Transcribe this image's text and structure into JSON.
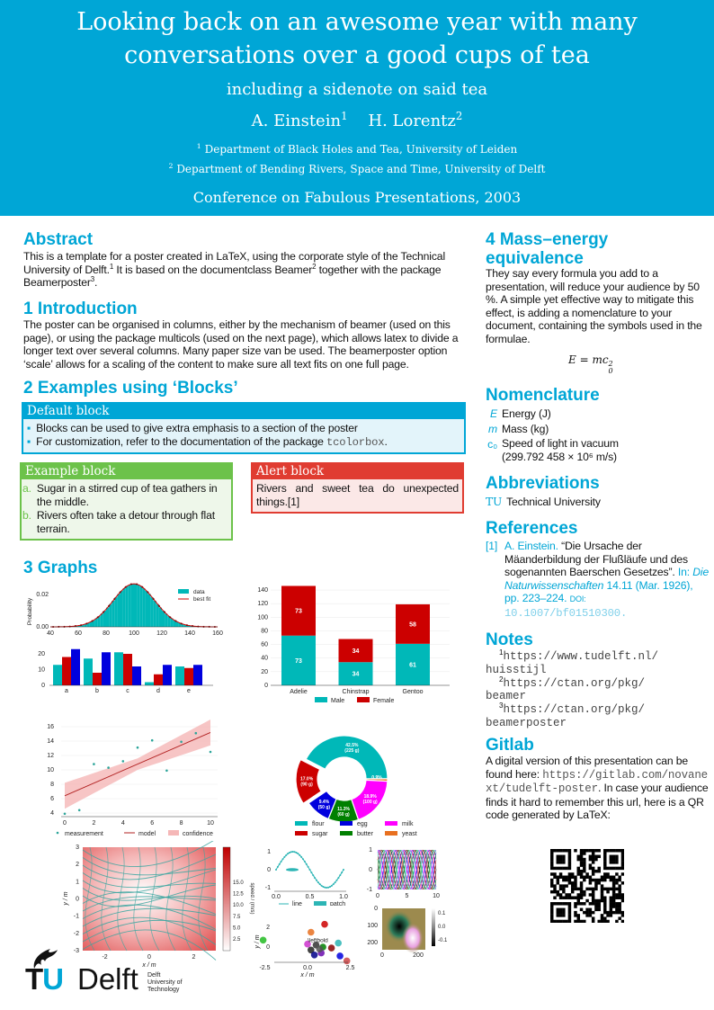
{
  "header": {
    "title_line1": "Looking back on an awesome year with many",
    "title_line2": "conversations over a good cups of tea",
    "subtitle": "including a sidenote on said tea",
    "author1": "A. Einstein",
    "author1_sup": "1",
    "author2": "H. Lorentz",
    "author2_sup": "2",
    "affil1_sup": "1",
    "affil1": "Department of Black Holes and Tea, University of Leiden",
    "affil2_sup": "2",
    "affil2": "Department of Bending Rivers, Space and Time, University of Delft",
    "conference": "Conference on Fabulous Presentations, 2003",
    "color": "#00A6D6"
  },
  "abstract": {
    "heading": "Abstract",
    "text1": "This is a template for a poster created in LaTeX, using the corporate style of the Technical University of Delft.",
    "sup1": "1",
    "text2": " It is based on the documentclass Beamer",
    "sup2": "2",
    "text3": " together with the package Beamerposter",
    "sup3": "3",
    "text4": "."
  },
  "intro": {
    "heading": "1 Introduction",
    "text": "The poster can be organised in columns, either by the mechanism of beamer (used on this page), or using the package multicols (used on the next page), which allows latex to divide a longer text over several columns.  Many paper size van be used.  The beamerposter option ‘scale’ allows for a scaling of the content to make sure all text fits on one full page."
  },
  "examples": {
    "heading": "2 Examples using ‘Blocks’",
    "default_block": {
      "title": "Default block",
      "items": [
        "Blocks can be used to give extra emphasis to a section of the poster",
        "For customization, refer to the documentation of the package "
      ],
      "package": "tcolorbox",
      "end": ".",
      "color": "#00A6D6"
    },
    "example_block": {
      "title": "Example block",
      "items": [
        {
          "marker": "a.",
          "text": "Sugar in a stirred cup of tea gathers in the middle."
        },
        {
          "marker": "b.",
          "text": "Rivers often take a detour through flat terrain."
        }
      ],
      "color": "#6CC24A"
    },
    "alert_block": {
      "title": "Alert block",
      "text": "Rivers and sweet tea do unexpected things.[1]",
      "color": "#E03C31"
    }
  },
  "graphs": {
    "heading": "3 Graphs"
  },
  "chart_data": [
    {
      "type": "histogram",
      "ylabel": "Probability",
      "xticks": [
        40,
        60,
        80,
        100,
        120,
        140,
        160
      ],
      "yticks": [
        "0.00",
        "0.02"
      ],
      "xlim": [
        40,
        160
      ],
      "ylim": [
        0,
        0.03
      ],
      "distribution": {
        "mean": 100,
        "std": 15
      },
      "legend": [
        "data",
        "best fit"
      ],
      "legend_position": "top-right",
      "colors": [
        "#00B8B8",
        "#CC0000"
      ]
    },
    {
      "type": "bar",
      "categories": [
        "a",
        "b",
        "c",
        "d",
        "e"
      ],
      "series": [
        {
          "values": [
            13,
            17,
            21,
            2,
            12
          ],
          "color": "#00B8B8"
        },
        {
          "values": [
            18,
            8,
            20,
            7,
            11
          ],
          "color": "#CC0000"
        },
        {
          "values": [
            23,
            21,
            12,
            13,
            13
          ],
          "color": "#0000DD"
        }
      ],
      "yticks": [
        0,
        10,
        20
      ],
      "ylim": [
        0,
        25
      ]
    },
    {
      "type": "stacked-bar",
      "categories": [
        "Adelie",
        "Chinstrap",
        "Gentoo"
      ],
      "series": [
        {
          "name": "Male",
          "values": [
            73,
            34,
            61
          ],
          "color": "#00B8B8"
        },
        {
          "name": "Female",
          "values": [
            73,
            34,
            58
          ],
          "color": "#CC0000"
        }
      ],
      "yticks": [
        0,
        20,
        40,
        60,
        80,
        100,
        120,
        140
      ],
      "ylim": [
        0,
        150
      ],
      "grid": true,
      "legend_position": "bottom"
    },
    {
      "type": "scatter",
      "x": [
        0,
        1,
        2,
        3,
        4,
        5,
        6,
        7,
        8,
        9,
        10
      ],
      "y": [
        3.9,
        4.4,
        10.8,
        10.3,
        11.2,
        13.1,
        14.1,
        9.9,
        13.9,
        15.1,
        12.5
      ],
      "model": {
        "x": [
          0,
          10
        ],
        "y": [
          6.4,
          15.2
        ]
      },
      "confidence_halfwidth": {
        "at_ends": 1.8,
        "at_center": 0.8
      },
      "xticks": [
        0,
        2,
        4,
        6,
        8,
        10
      ],
      "yticks": [
        4,
        6,
        8,
        10,
        12,
        14,
        16
      ],
      "xlim": [
        0,
        10
      ],
      "ylim": [
        3.5,
        17
      ],
      "legend": [
        "measurement",
        "model",
        "confidence"
      ],
      "legend_position": "bottom",
      "grid": true
    },
    {
      "type": "pie",
      "donut": true,
      "slices": [
        {
          "name": "flour",
          "percent": "42.5%",
          "amount": "(225 g)",
          "value": 225,
          "color": "#00B8B8"
        },
        {
          "name": "yeast",
          "percent": "0.9%",
          "amount": "(5 g)",
          "value": 5,
          "color": "#E87020"
        },
        {
          "name": "milk",
          "percent": "18.9%",
          "amount": "(100 g)",
          "value": 100,
          "color": "#FF00FF"
        },
        {
          "name": "butter",
          "percent": "11.3%",
          "amount": "(60 g)",
          "value": 60,
          "color": "#008000"
        },
        {
          "name": "egg",
          "percent": "9.4%",
          "amount": "(50 g)",
          "value": 50,
          "color": "#0000DD"
        },
        {
          "name": "sugar",
          "percent": "17.0%",
          "amount": "(90 g)",
          "value": 90,
          "color": "#CC0000",
          "exploded": true
        }
      ],
      "legend_order": [
        "flour",
        "egg",
        "milk",
        "sugar",
        "butter",
        "yeast"
      ],
      "legend_position": "bottom"
    },
    {
      "type": "streamplot",
      "xlabel": "x / m",
      "ylabel": "y / m",
      "xticks": [
        -2,
        0,
        2
      ],
      "yticks": [
        -3,
        -2,
        -1,
        0,
        1,
        2,
        3
      ],
      "colorbar_label": "speed / (m/s)",
      "colorbar_ticks": [
        "2.5",
        "5.0",
        "7.5",
        "10.0",
        "12.5",
        "15.0"
      ]
    },
    {
      "type": "line",
      "function": "sin(2πx)",
      "xticks": [
        "0.0",
        "0.5",
        "1.0"
      ],
      "yticks": [
        "-1",
        "0",
        "1"
      ],
      "legend": [
        "line",
        "patch"
      ]
    },
    {
      "type": "line",
      "function": "phase-shifted sinusoids",
      "xticks": [
        "0",
        "5",
        "10"
      ],
      "yticks": [
        "-1",
        "0",
        "1"
      ]
    },
    {
      "type": "scatter",
      "xlabel": "x / m",
      "ylabel": "y / m",
      "xticks": [
        "-2.5",
        "0.0",
        "2.5"
      ],
      "yticks": [
        "0",
        "2"
      ],
      "annotation": "\\leftbold"
    },
    {
      "type": "heatmap",
      "xticks": [
        "0",
        "200"
      ],
      "yticks": [
        "0",
        "100",
        "200"
      ],
      "colorbar_ticks": [
        "0.1",
        "0.0",
        "-0.1"
      ]
    }
  ],
  "mass_energy": {
    "heading": "4 Mass–energy equivalence",
    "text": "They say every formula you add to a presentation, will reduce your audience by 50 %.  A simple yet effective way to mitigate this effect, is adding a nomenclature to your document, containing the symbols used in the formulae.",
    "formula": "E = mc",
    "formula_sup": "2",
    "formula_sub": "0"
  },
  "nomenclature": {
    "heading": "Nomenclature",
    "items": [
      {
        "symbol": "E",
        "desc": "Energy (J)"
      },
      {
        "symbol": "m",
        "desc": "Mass (kg)"
      },
      {
        "symbol": "c₀",
        "desc": "Speed of light in vacuum",
        "desc2": "(299.792 458 × 10⁶ m/s)"
      }
    ]
  },
  "abbreviations": {
    "heading": "Abbreviations",
    "items": [
      {
        "abbr": "TU",
        "desc": "Technical University"
      }
    ]
  },
  "references": {
    "heading": "References",
    "items": [
      {
        "label": "[1]",
        "author": "A. Einstein.",
        "title": "“Die Ursache der Mäanderbildung der Flußläufe und des sogenannten Baerschen Gesetzes”.",
        "in": "In:",
        "journal": "Die Naturwissenschaften",
        "details": "14.11 (Mar. 1926), pp. 223–224.",
        "doi_label": "DOI:",
        "doi": "10.1007/bf01510300."
      }
    ]
  },
  "notes": {
    "heading": "Notes",
    "items": [
      {
        "num": "1",
        "url1": "https://www.tudelft.nl/",
        "url2": "huisstijl"
      },
      {
        "num": "2",
        "url1": "https://ctan.org/pkg/",
        "url2": "beamer"
      },
      {
        "num": "3",
        "url1": "https://ctan.org/pkg/",
        "url2": "beamerposter"
      }
    ]
  },
  "gitlab": {
    "heading": "Gitlab",
    "text1": "A digital version of this presentation can be found here: ",
    "url": "https://gitlab.com/novanext/tudelft-poster",
    "text2": ". In case your audience finds it hard to remember this url, here is a QR code generated by LaTeX:"
  },
  "logo": {
    "tu": "TU",
    "delft": "Delft",
    "line1": "Delft",
    "line2": "University of",
    "line3": "Technology"
  }
}
